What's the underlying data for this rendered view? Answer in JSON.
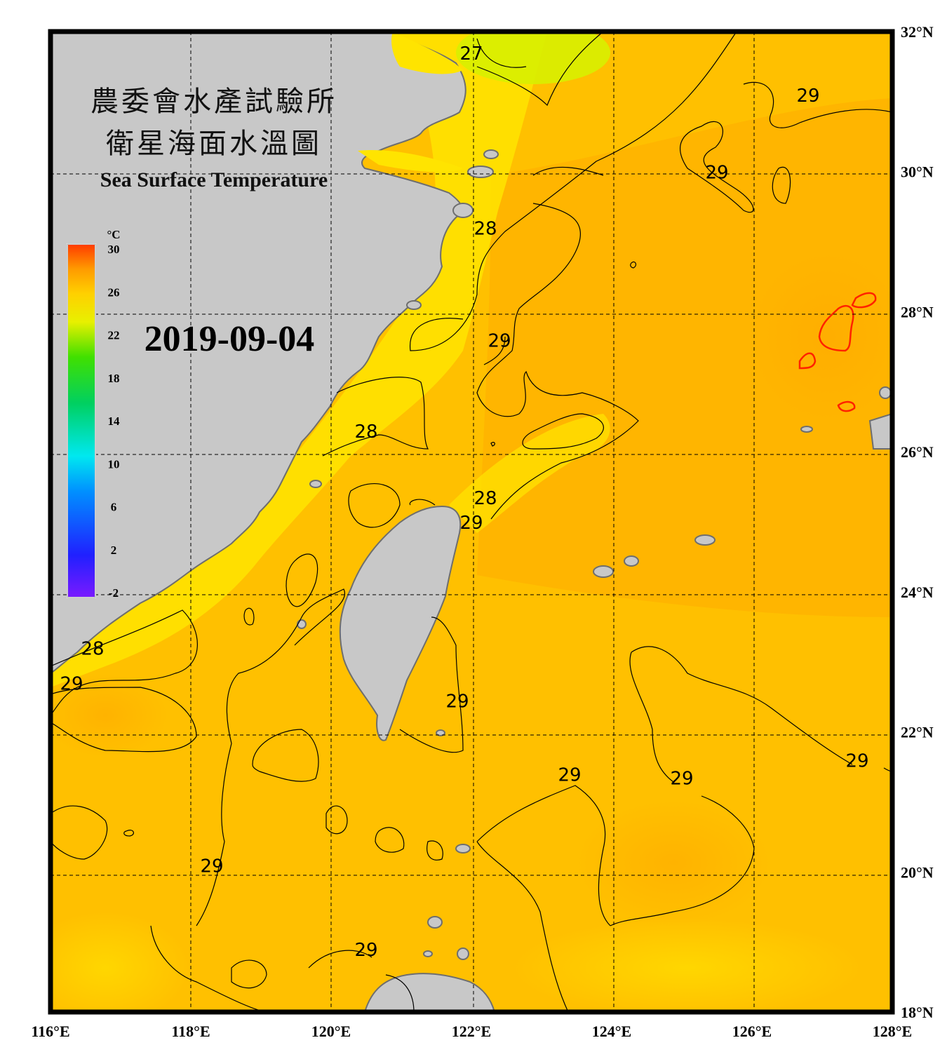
{
  "title": {
    "line1": "農委會水產試驗所",
    "line2": "衛星海面水溫圖",
    "english": "Sea Surface Temperature"
  },
  "date": "2019-09-04",
  "colorbar": {
    "unit": "°C",
    "ticks": [
      "30",
      "26",
      "22",
      "18",
      "14",
      "10",
      "6",
      "2",
      "-2"
    ],
    "range": [
      -2,
      30
    ]
  },
  "axes": {
    "longitude_labels": [
      "116°E",
      "118°E",
      "120°E",
      "122°E",
      "124°E",
      "126°E",
      "128°E"
    ],
    "latitude_labels": [
      "32°N",
      "30°N",
      "28°N",
      "26°N",
      "24°N",
      "22°N",
      "20°N",
      "18°N"
    ],
    "lon_range": [
      116,
      128
    ],
    "lat_range": [
      18,
      32
    ]
  },
  "contour_labels": [
    {
      "text": "29",
      "lon": 126.8,
      "lat": 31.0
    },
    {
      "text": "29",
      "lon": 125.5,
      "lat": 29.9
    },
    {
      "text": "28",
      "lon": 122.2,
      "lat": 29.1
    },
    {
      "text": "29",
      "lon": 122.4,
      "lat": 27.5
    },
    {
      "text": "28",
      "lon": 120.5,
      "lat": 26.2
    },
    {
      "text": "28",
      "lon": 122.2,
      "lat": 25.25
    },
    {
      "text": "29",
      "lon": 122.0,
      "lat": 24.9
    },
    {
      "text": "28",
      "lon": 116.6,
      "lat": 23.1
    },
    {
      "text": "29",
      "lon": 116.3,
      "lat": 22.6
    },
    {
      "text": "29",
      "lon": 121.8,
      "lat": 22.35
    },
    {
      "text": "29",
      "lon": 127.5,
      "lat": 21.5
    },
    {
      "text": "29",
      "lon": 123.4,
      "lat": 21.3
    },
    {
      "text": "29",
      "lon": 125.0,
      "lat": 21.25
    },
    {
      "text": "29",
      "lon": 118.3,
      "lat": 20.0
    },
    {
      "text": "29",
      "lon": 120.5,
      "lat": 18.8
    },
    {
      "text": "27",
      "lon": 122.0,
      "lat": 31.6
    }
  ],
  "colors": {
    "land": "#c8c8c8",
    "coast": "#6e6e6e",
    "warm_contour": "#ff2200"
  }
}
